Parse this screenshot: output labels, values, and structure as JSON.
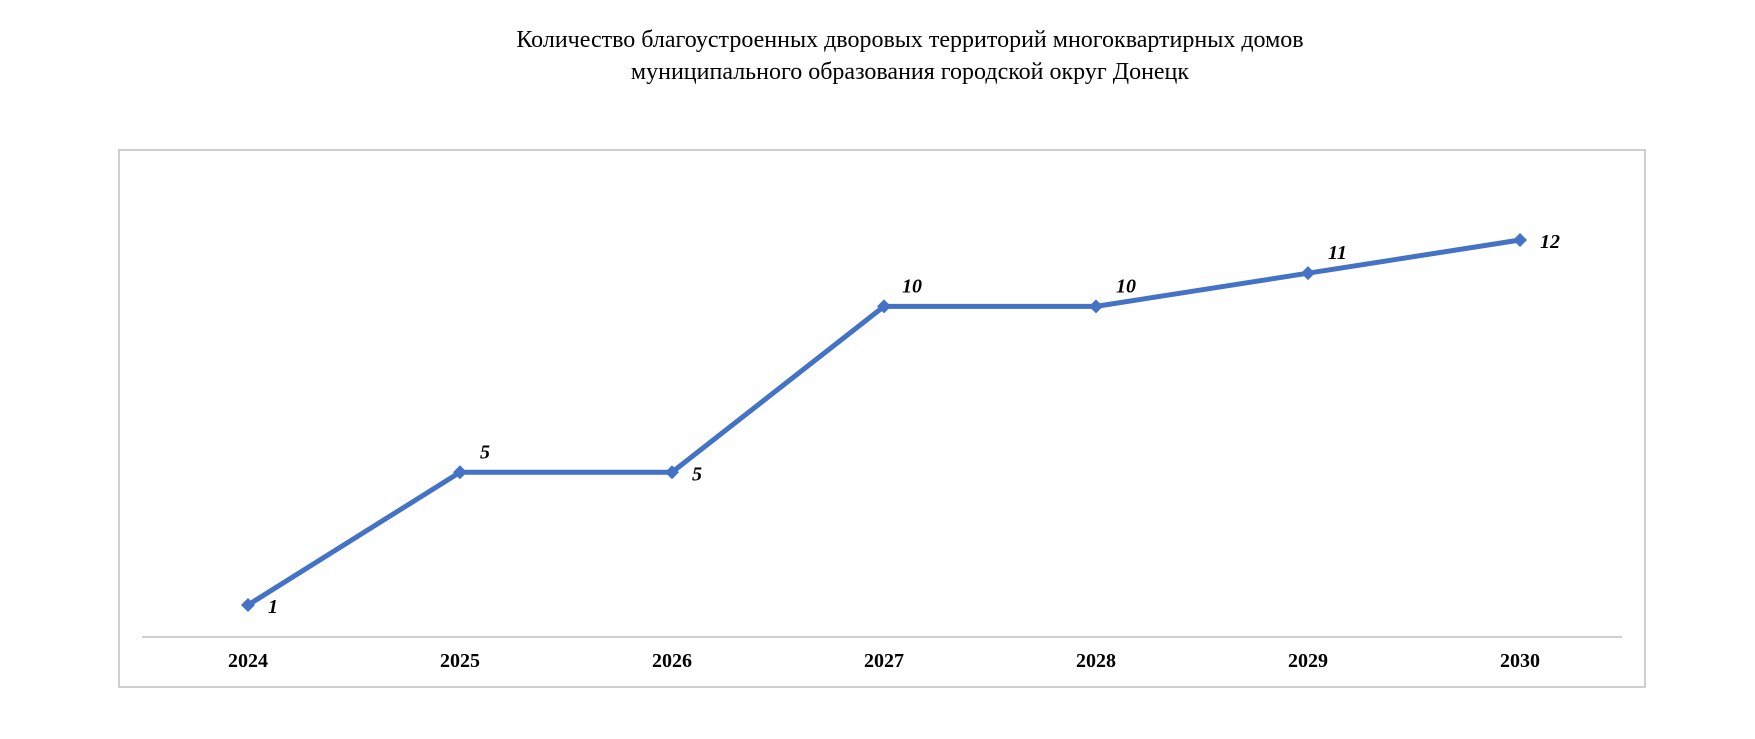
{
  "chart_data": {
    "type": "line",
    "title_line1": "Количество благоустроенных дворовых территорий многоквартирных домов",
    "title_line2": "муниципального образования городской округ Донецк",
    "xlabel": "",
    "ylabel": "",
    "categories": [
      "2024",
      "2025",
      "2026",
      "2027",
      "2028",
      "2029",
      "2030"
    ],
    "series": [
      {
        "values": [
          1,
          5,
          5,
          10,
          10,
          11,
          12
        ],
        "labels": [
          "1",
          "5",
          "5",
          "10",
          "10",
          "11",
          "12"
        ],
        "color": "#4472C4",
        "marker": "diamond"
      }
    ],
    "ylim": [
      0,
      12
    ],
    "grid": false,
    "legend": "none",
    "axis_color": "#BFBFBF",
    "frame_color": "#BFBFBF"
  }
}
